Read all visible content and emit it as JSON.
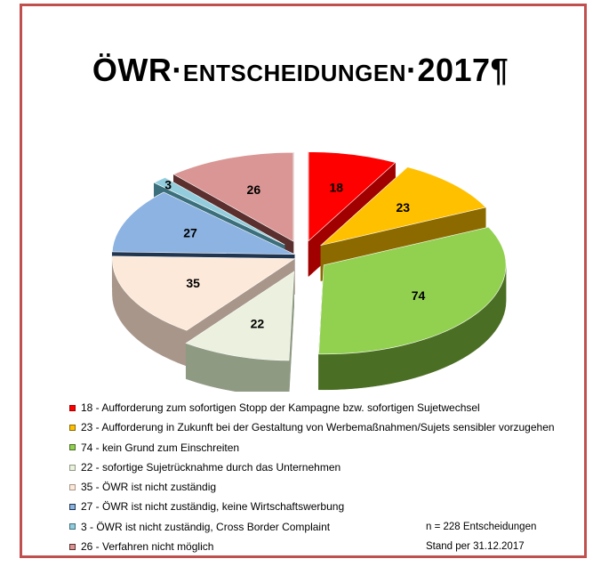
{
  "title": {
    "main": "ÖWR·",
    "smallcaps": "Entscheidungen",
    "tail": "·2017¶"
  },
  "chart_data": {
    "type": "pie",
    "title": "ÖWR·Entscheidungen·2017¶",
    "slices": [
      {
        "value": 18,
        "label": "18 - Aufforderung zum sofortigen Stopp der Kampagne bzw. sofortigen Sujetwechsel",
        "color": "#ff0000",
        "side": "#a00000",
        "exploded": true
      },
      {
        "value": 23,
        "label": "23 - Aufforderung in Zukunft bei der Gestaltung von Werbemaßnahmen/Sujets sensibler vorzugehen",
        "color": "#ffc000",
        "side": "#8c6a00",
        "exploded": true
      },
      {
        "value": 74,
        "label": "74 - kein Grund zum Einschreiten",
        "color": "#92d050",
        "side": "#4a6e24",
        "exploded": true
      },
      {
        "value": 22,
        "label": "22 - sofortige Sujetrücknahme durch das Unternehmen",
        "color": "#ebf1de",
        "side": "#8f9a83",
        "exploded": true
      },
      {
        "value": 35,
        "label": "35 - ÖWR ist nicht zuständig",
        "color": "#fde9d9",
        "side": "#a8968a",
        "exploded": false
      },
      {
        "value": 27,
        "label": "27 - ÖWR ist nicht zuständig, keine Wirtschaftswerbung",
        "color": "#8db3e2",
        "side": "#1f3550",
        "exploded": false
      },
      {
        "value": 3,
        "label": "3 - ÖWR ist nicht zuständig, Cross Border Complaint",
        "color": "#93cddd",
        "side": "#3b6f7c",
        "exploded": true
      },
      {
        "value": 26,
        "label": "26 - Verfahren nicht möglich",
        "color": "#d99694",
        "side": "#5a2f2e",
        "exploded": true
      }
    ],
    "legend_position": "bottom"
  },
  "notes": {
    "total": "n = 228 Entscheidungen",
    "date": "Stand per 31.12.2017"
  }
}
